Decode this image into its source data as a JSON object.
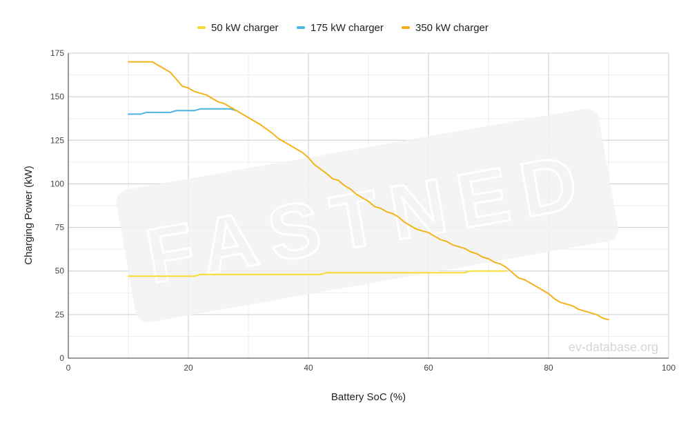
{
  "watermark": {
    "brand": "FASTNED",
    "site": "ev-database.org"
  },
  "chart_data": {
    "type": "line",
    "title": "",
    "xlabel": "Battery SoC (%)",
    "ylabel": "Charging Power (kW)",
    "xlim": [
      0,
      100
    ],
    "ylim": [
      0,
      175
    ],
    "x_ticks": [
      0,
      20,
      40,
      60,
      80,
      100
    ],
    "y_ticks": [
      0,
      25,
      50,
      75,
      100,
      125,
      150,
      175
    ],
    "grid": true,
    "legend_position": "top-center",
    "series": [
      {
        "name": "50 kW charger",
        "color": "#f7dc31",
        "points": [
          [
            10,
            47
          ],
          [
            20,
            47
          ],
          [
            21,
            47
          ],
          [
            22,
            48
          ],
          [
            30,
            48
          ],
          [
            42,
            48
          ],
          [
            43,
            49
          ],
          [
            50,
            49
          ],
          [
            66,
            49
          ],
          [
            67,
            50
          ],
          [
            72,
            50
          ],
          [
            73,
            50
          ]
        ]
      },
      {
        "name": "175 kW charger",
        "color": "#4ab3df",
        "points": [
          [
            10,
            140
          ],
          [
            12,
            140
          ],
          [
            13,
            141
          ],
          [
            17,
            141
          ],
          [
            18,
            142
          ],
          [
            21,
            142
          ],
          [
            22,
            143
          ],
          [
            27,
            143
          ],
          [
            28,
            142
          ]
        ]
      },
      {
        "name": "350 kW charger",
        "color": "#f1b318",
        "points": [
          [
            10,
            170
          ],
          [
            14,
            170
          ],
          [
            15,
            168
          ],
          [
            17,
            164
          ],
          [
            19,
            156
          ],
          [
            20,
            155
          ],
          [
            21,
            153
          ],
          [
            23,
            151
          ],
          [
            24,
            149
          ],
          [
            25,
            147
          ],
          [
            26,
            146
          ],
          [
            27,
            144
          ],
          [
            28,
            142
          ],
          [
            30,
            138
          ],
          [
            32,
            134
          ],
          [
            34,
            129
          ],
          [
            35,
            126
          ],
          [
            37,
            122
          ],
          [
            39,
            118
          ],
          [
            40,
            115
          ],
          [
            41,
            111
          ],
          [
            43,
            106
          ],
          [
            44,
            103
          ],
          [
            45,
            102
          ],
          [
            46,
            99
          ],
          [
            47,
            97
          ],
          [
            48,
            94
          ],
          [
            50,
            90
          ],
          [
            51,
            87
          ],
          [
            52,
            86
          ],
          [
            53,
            84
          ],
          [
            54,
            83
          ],
          [
            55,
            81
          ],
          [
            56,
            78
          ],
          [
            58,
            74
          ],
          [
            60,
            72
          ],
          [
            62,
            68
          ],
          [
            63,
            67
          ],
          [
            64,
            65
          ],
          [
            65,
            64
          ],
          [
            66,
            63
          ],
          [
            67,
            61
          ],
          [
            68,
            60
          ],
          [
            69,
            58
          ],
          [
            70,
            57
          ],
          [
            71,
            55
          ],
          [
            72,
            54
          ],
          [
            73,
            52
          ],
          [
            74,
            49
          ],
          [
            75,
            46
          ],
          [
            76,
            45
          ],
          [
            78,
            41
          ],
          [
            80,
            37
          ],
          [
            81,
            34
          ],
          [
            82,
            32
          ],
          [
            84,
            30
          ],
          [
            85,
            28
          ],
          [
            87,
            26
          ],
          [
            88,
            25
          ],
          [
            89,
            23
          ],
          [
            90,
            22
          ]
        ]
      }
    ]
  }
}
